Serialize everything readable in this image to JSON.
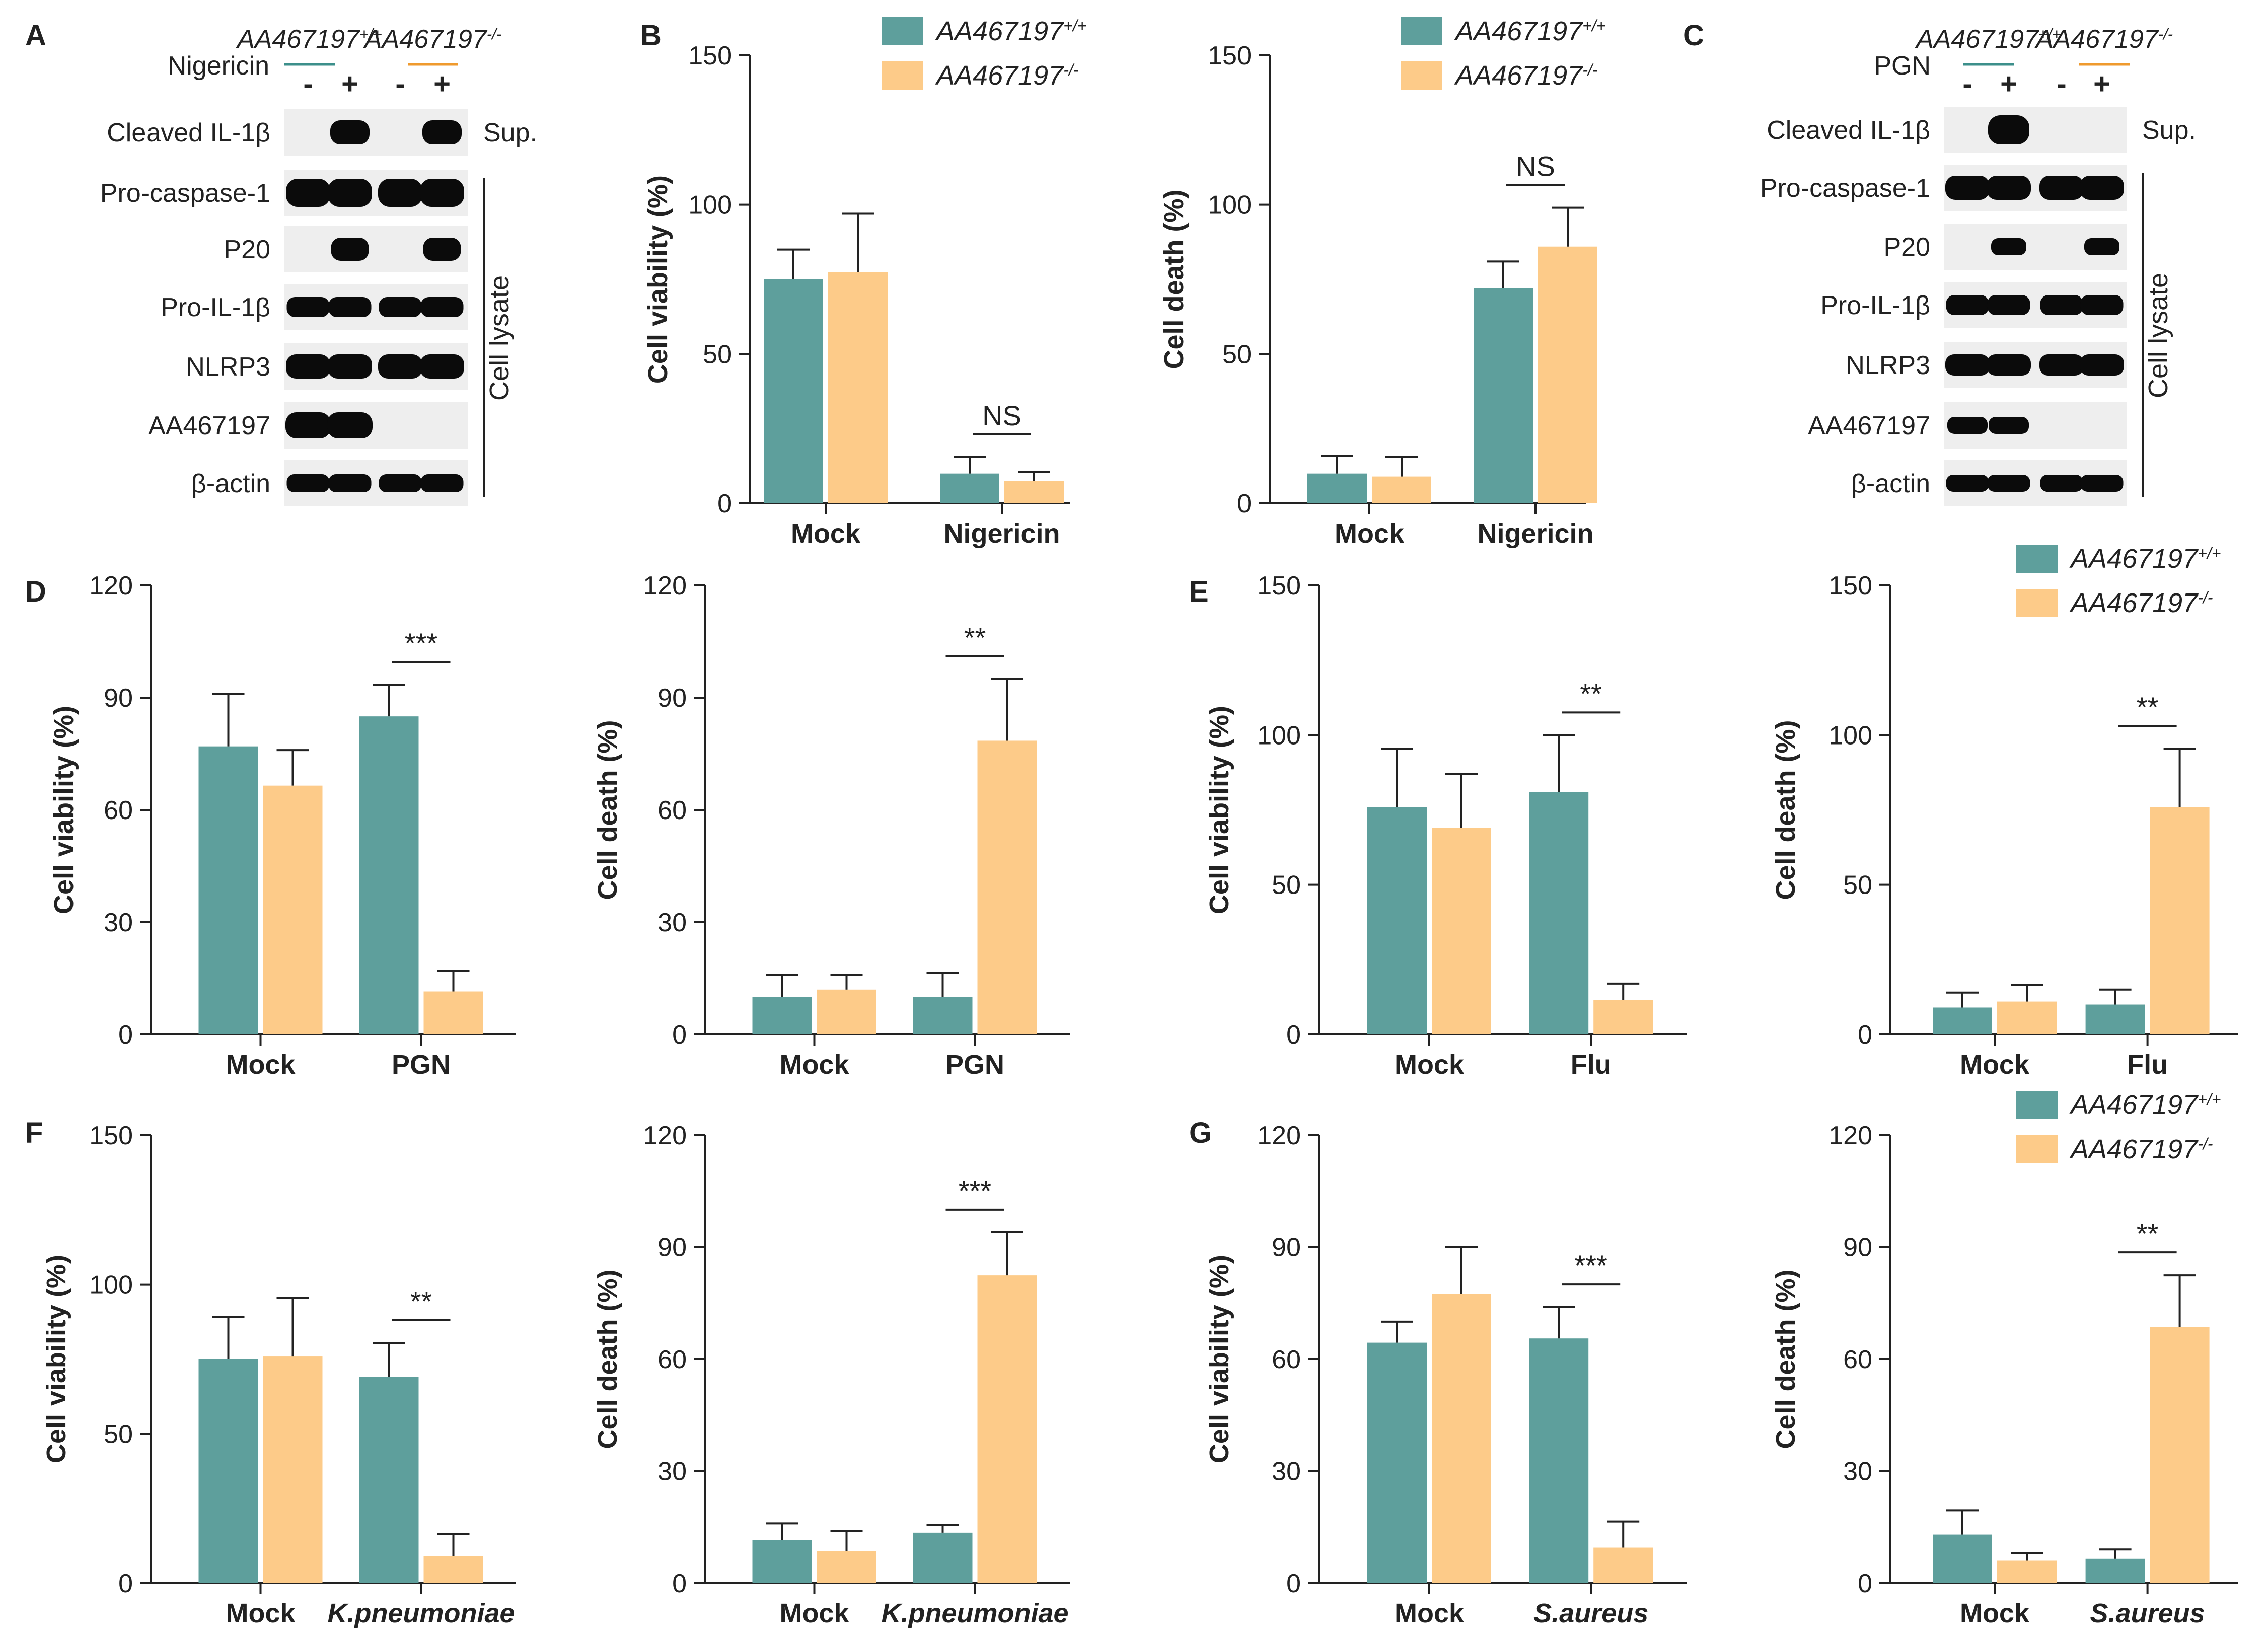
{
  "colors": {
    "wt": "#5e9f9c",
    "ko": "#fdcb89",
    "axis": "#222222",
    "teal_text": "#3c8f8b",
    "orange_text": "#ef9a2e",
    "blot_bg": "#eeeeee",
    "band": "#0b0b0b"
  },
  "genotypes": {
    "base": "AA467197",
    "wt_sup": "+/+",
    "ko_sup": "-/-"
  },
  "sig": {
    "ns": "NS",
    "two": "**",
    "three": "***"
  },
  "panel_letters": {
    "A": "A",
    "B": "B",
    "C": "C",
    "D": "D",
    "E": "E",
    "F": "F",
    "G": "G"
  },
  "blots": {
    "a": {
      "treatment": "Nigericin",
      "signs": [
        "-",
        "+",
        "-",
        "+"
      ],
      "rows": [
        "Cleaved IL-1β",
        "Pro-caspase-1",
        "P20",
        "Pro-IL-1β",
        "NLRP3",
        "AA467197",
        "β-actin"
      ],
      "sup_label": "Sup.",
      "lysate_label": "Cell lysate"
    },
    "c": {
      "treatment": "PGN",
      "signs": [
        "-",
        "+",
        "-",
        "+"
      ],
      "rows": [
        "Cleaved IL-1β",
        "Pro-caspase-1",
        "P20",
        "Pro-IL-1β",
        "NLRP3",
        "AA467197",
        "β-actin"
      ],
      "sup_label": "Sup.",
      "lysate_label": "Cell lysate"
    }
  },
  "chart_data": [
    {
      "panel": "B",
      "type": "bar",
      "ylabel": "Cell viability (%)",
      "ylim": [
        0,
        150
      ],
      "yticks": [
        0,
        50,
        100,
        150
      ],
      "categories": [
        "Mock",
        "Nigericin"
      ],
      "series": [
        {
          "name": "AA467197+/+",
          "values": [
            75,
            10
          ],
          "errors": [
            10,
            5.5
          ]
        },
        {
          "name": "AA467197-/-",
          "values": [
            77.5,
            7.5
          ],
          "errors": [
            19.5,
            3
          ]
        }
      ],
      "annotations": [
        {
          "category": "Nigericin",
          "label": "NS"
        }
      ],
      "legend": "top-right"
    },
    {
      "panel": "B",
      "type": "bar",
      "ylabel": "Cell death (%)",
      "ylim": [
        0,
        150
      ],
      "yticks": [
        0,
        50,
        100,
        150
      ],
      "categories": [
        "Mock",
        "Nigericin"
      ],
      "series": [
        {
          "name": "AA467197+/+",
          "values": [
            10,
            72
          ],
          "errors": [
            6,
            9
          ]
        },
        {
          "name": "AA467197-/-",
          "values": [
            9,
            86
          ],
          "errors": [
            6.5,
            13
          ]
        }
      ],
      "annotations": [
        {
          "category": "Nigericin",
          "label": "NS"
        }
      ],
      "legend": "top-right"
    },
    {
      "panel": "D",
      "type": "bar",
      "ylabel": "Cell viability (%)",
      "ylim": [
        0,
        120
      ],
      "yticks": [
        0,
        30,
        60,
        90,
        120
      ],
      "categories": [
        "Mock",
        "PGN"
      ],
      "series": [
        {
          "name": "AA467197+/+",
          "values": [
            77,
            85
          ],
          "errors": [
            14,
            8.5
          ]
        },
        {
          "name": "AA467197-/-",
          "values": [
            66.5,
            11.5
          ],
          "errors": [
            9.5,
            5.5
          ]
        }
      ],
      "annotations": [
        {
          "category": "PGN",
          "label": "***"
        }
      ]
    },
    {
      "panel": "D",
      "type": "bar",
      "ylabel": "Cell death (%)",
      "ylim": [
        0,
        120
      ],
      "yticks": [
        0,
        30,
        60,
        90,
        120
      ],
      "categories": [
        "Mock",
        "PGN"
      ],
      "series": [
        {
          "name": "AA467197+/+",
          "values": [
            10,
            10
          ],
          "errors": [
            6,
            6.5
          ]
        },
        {
          "name": "AA467197-/-",
          "values": [
            12,
            78.5
          ],
          "errors": [
            4,
            16.5
          ]
        }
      ],
      "annotations": [
        {
          "category": "PGN",
          "label": "**"
        }
      ]
    },
    {
      "panel": "E",
      "type": "bar",
      "ylabel": "Cell viability (%)",
      "ylim": [
        0,
        150
      ],
      "yticks": [
        0,
        50,
        100,
        150
      ],
      "categories": [
        "Mock",
        "Flu"
      ],
      "series": [
        {
          "name": "AA467197+/+",
          "values": [
            76,
            81
          ],
          "errors": [
            19.5,
            19
          ]
        },
        {
          "name": "AA467197-/-",
          "values": [
            69,
            11.5
          ],
          "errors": [
            18,
            5.5
          ]
        }
      ],
      "annotations": [
        {
          "category": "Flu",
          "label": "**"
        }
      ]
    },
    {
      "panel": "E",
      "type": "bar",
      "ylabel": "Cell death (%)",
      "ylim": [
        0,
        150
      ],
      "yticks": [
        0,
        50,
        100,
        150
      ],
      "categories": [
        "Mock",
        "Flu"
      ],
      "series": [
        {
          "name": "AA467197+/+",
          "values": [
            9,
            10
          ],
          "errors": [
            5,
            5
          ]
        },
        {
          "name": "AA467197-/-",
          "values": [
            11,
            76
          ],
          "errors": [
            5.5,
            19.5
          ]
        }
      ],
      "annotations": [
        {
          "category": "Flu",
          "label": "**"
        }
      ],
      "legend": "top-right"
    },
    {
      "panel": "F",
      "type": "bar",
      "ylabel": "Cell viability (%)",
      "ylim": [
        0,
        150
      ],
      "yticks": [
        0,
        50,
        100,
        150
      ],
      "categories": [
        "Mock",
        "K.pneumoniae"
      ],
      "series": [
        {
          "name": "AA467197+/+",
          "values": [
            75,
            69
          ],
          "errors": [
            14,
            11.5
          ]
        },
        {
          "name": "AA467197-/-",
          "values": [
            76,
            9
          ],
          "errors": [
            19.5,
            7.5
          ]
        }
      ],
      "annotations": [
        {
          "category": "K.pneumoniae",
          "label": "**"
        }
      ]
    },
    {
      "panel": "F",
      "type": "bar",
      "ylabel": "Cell death (%)",
      "ylim": [
        0,
        120
      ],
      "yticks": [
        0,
        30,
        60,
        90,
        120
      ],
      "categories": [
        "Mock",
        "K.pneumoniae"
      ],
      "series": [
        {
          "name": "AA467197+/+",
          "values": [
            11.5,
            13.5
          ],
          "errors": [
            4.5,
            2
          ]
        },
        {
          "name": "AA467197-/-",
          "values": [
            8.5,
            82.5
          ],
          "errors": [
            5.5,
            11.5
          ]
        }
      ],
      "annotations": [
        {
          "category": "K.pneumoniae",
          "label": "***"
        }
      ]
    },
    {
      "panel": "G",
      "type": "bar",
      "ylabel": "Cell viability (%)",
      "ylim": [
        0,
        120
      ],
      "yticks": [
        0,
        30,
        60,
        90,
        120
      ],
      "categories": [
        "Mock",
        "S.aureus"
      ],
      "series": [
        {
          "name": "AA467197+/+",
          "values": [
            64.5,
            65.5
          ],
          "errors": [
            5.5,
            8.5
          ]
        },
        {
          "name": "AA467197-/-",
          "values": [
            77.5,
            9.5
          ],
          "errors": [
            12.5,
            7
          ]
        }
      ],
      "annotations": [
        {
          "category": "S.aureus",
          "label": "***"
        }
      ]
    },
    {
      "panel": "G",
      "type": "bar",
      "ylabel": "Cell death (%)",
      "ylim": [
        0,
        120
      ],
      "yticks": [
        0,
        30,
        60,
        90,
        120
      ],
      "categories": [
        "Mock",
        "S.aureus"
      ],
      "series": [
        {
          "name": "AA467197+/+",
          "values": [
            13,
            6.5
          ],
          "errors": [
            6.5,
            2.5
          ]
        },
        {
          "name": "AA467197-/-",
          "values": [
            6,
            68.5
          ],
          "errors": [
            2,
            14
          ]
        }
      ],
      "annotations": [
        {
          "category": "S.aureus",
          "label": "**"
        }
      ],
      "legend": "top-right"
    }
  ]
}
